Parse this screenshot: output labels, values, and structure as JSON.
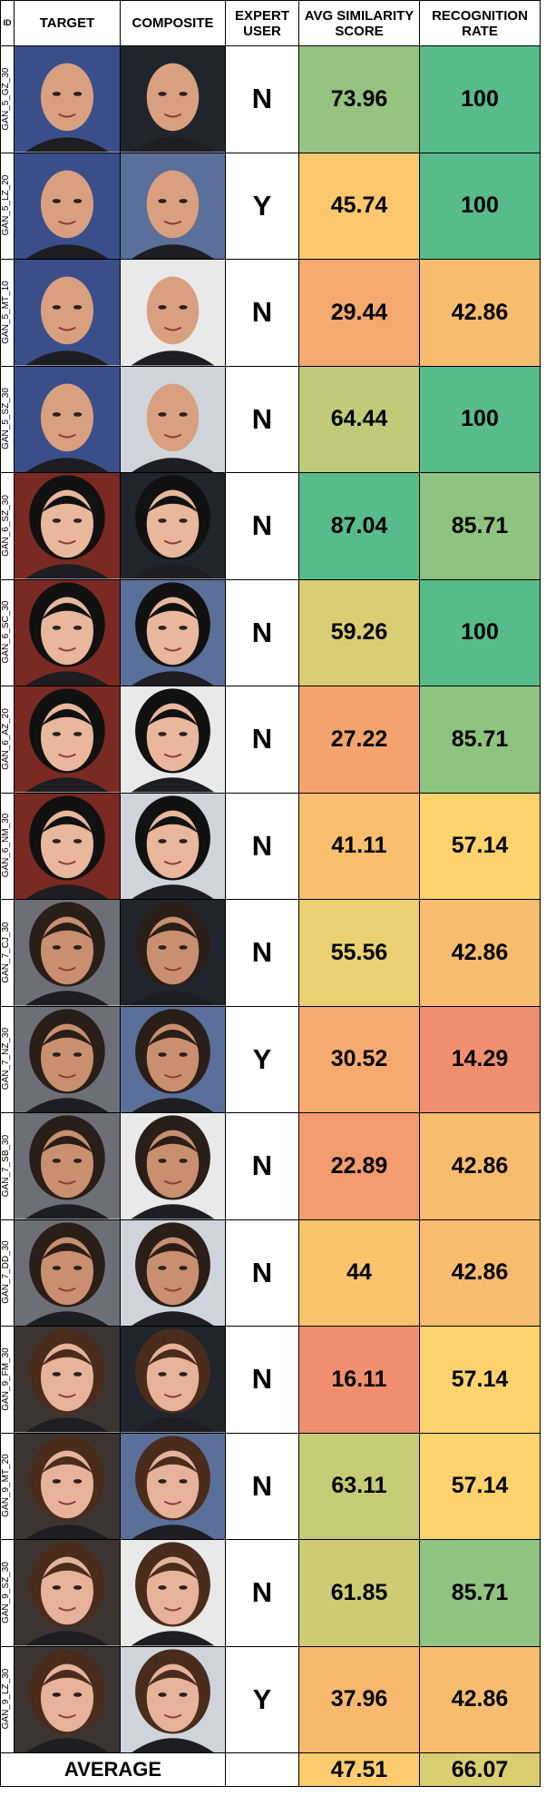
{
  "table": {
    "headers": [
      "ID",
      "TARGET",
      "COMPOSITE",
      "EXPERT USER",
      "AVG SIMILARITY SCORE",
      "RECOGNITION RATE"
    ],
    "rows": [
      [
        "GAN_5_GZ_30",
        "N",
        73.96,
        100
      ],
      [
        "GAN_5_LZ_20",
        "Y",
        45.74,
        100
      ],
      [
        "GAN_5_MT_10",
        "N",
        29.44,
        42.86
      ],
      [
        "GAN_5_SZ_30",
        "N",
        64.44,
        100
      ],
      [
        "GAN_6_SZ_30",
        "N",
        87.04,
        85.71
      ],
      [
        "GAN_6_SC_30",
        "N",
        59.26,
        100
      ],
      [
        "GAN_6_AZ_20",
        "N",
        27.22,
        85.71
      ],
      [
        "GAN_6_NM_30",
        "N",
        41.11,
        57.14
      ],
      [
        "GAN_7_CJ_30",
        "N",
        55.56,
        42.86
      ],
      [
        "GAN_7_NZ_30",
        "Y",
        30.52,
        14.29
      ],
      [
        "GAN_7_SB_30",
        "N",
        22.89,
        42.86
      ],
      [
        "GAN_7_DD_30",
        "N",
        44,
        42.86
      ],
      [
        "GAN_9_FM_30",
        "N",
        16.11,
        57.14
      ],
      [
        "GAN_9_MT_20",
        "N",
        63.11,
        57.14
      ],
      [
        "GAN_9_SZ_30",
        "N",
        61.85,
        85.71
      ],
      [
        "GAN_9_LZ_30",
        "Y",
        37.96,
        42.86
      ]
    ],
    "footer": {
      "label": "AVERAGE",
      "values": [
        47.51,
        66.07
      ]
    }
  }
}
